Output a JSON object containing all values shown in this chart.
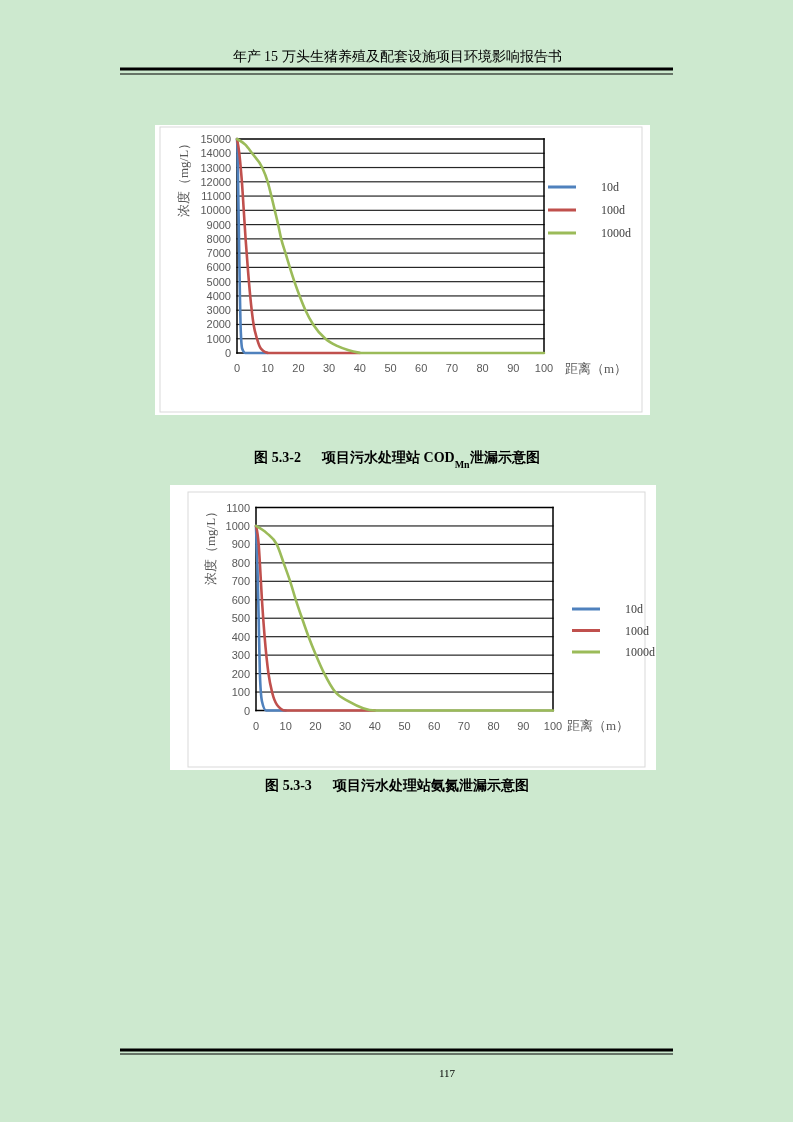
{
  "chart_data": [
    {
      "type": "line",
      "title": "图 5.3-2      项目污水处理站 COD$_{Mn}$泄漏示意图",
      "xlabel": "距离（m）",
      "ylabel": "浓度（mg/L）",
      "xlim": [
        0,
        100
      ],
      "ylim": [
        0,
        15000
      ],
      "xticks": [
        0,
        10,
        20,
        30,
        40,
        50,
        60,
        70,
        80,
        90,
        100
      ],
      "yticks": [
        0,
        1000,
        2000,
        3000,
        4000,
        5000,
        6000,
        7000,
        8000,
        9000,
        10000,
        11000,
        12000,
        13000,
        14000,
        15000
      ],
      "grid": "y",
      "legend": "right",
      "annotations": [
        "年产 15 万头生猪养殖及配套设施项目环境影响报告书"
      ],
      "series": [
        {
          "name": "10d",
          "color": "#4f81bd",
          "x": [
            0,
            0.2,
            0.35,
            0.5,
            0.65,
            0.8,
            0.95,
            1.15,
            1.35,
            1.7,
            2.7,
            10
          ],
          "values": [
            15000,
            14000,
            12000,
            10000,
            8000,
            6000,
            4000,
            2000,
            1000,
            300,
            0,
            0
          ]
        },
        {
          "name": "100d",
          "color": "#c0504d",
          "x": [
            0,
            0.75,
            1.2,
            1.6,
            2.2,
            2.8,
            3.5,
            4.3,
            5.4,
            6.5,
            7.8,
            10.3,
            40
          ],
          "values": [
            15000,
            14000,
            13000,
            12000,
            10000,
            8000,
            6000,
            4000,
            2000,
            1000,
            300,
            0,
            0
          ]
        },
        {
          "name": "1000d",
          "color": "#9bbb59",
          "x": [
            0,
            2.7,
            4.9,
            8.2,
            10.0,
            11.2,
            12.3,
            13.4,
            14.4,
            15.8,
            17.2,
            18.7,
            20.4,
            22.3,
            24.8,
            28.8,
            32.6,
            36.4,
            41.3,
            100
          ],
          "values": [
            15000,
            14600,
            14000,
            13000,
            12000,
            11000,
            10000,
            9000,
            8000,
            7000,
            6000,
            5000,
            4000,
            3000,
            2000,
            1000,
            500,
            200,
            0,
            0
          ]
        }
      ]
    },
    {
      "type": "line",
      "title": "图 5.3-3      项目污水处理站氨氮泄漏示意图",
      "xlabel": "距离（m）",
      "ylabel": "浓度（mg/L）",
      "xlim": [
        0,
        100
      ],
      "ylim": [
        0,
        1100
      ],
      "xticks": [
        0,
        10,
        20,
        30,
        40,
        50,
        60,
        70,
        80,
        90,
        100
      ],
      "yticks": [
        0,
        100,
        200,
        300,
        400,
        500,
        600,
        700,
        800,
        900,
        1000,
        1100
      ],
      "grid": "y",
      "legend": "right",
      "annotations": [
        "117"
      ],
      "series": [
        {
          "name": "10d",
          "color": "#4f81bd",
          "x": [
            0,
            0.2,
            0.45,
            0.9,
            1.3,
            2.0,
            3.4,
            10
          ],
          "values": [
            1000,
            900,
            800,
            500,
            200,
            50,
            0,
            0
          ]
        },
        {
          "name": "100d",
          "color": "#c0504d",
          "x": [
            0,
            0.9,
            1.3,
            2.0,
            2.9,
            4.2,
            5.4,
            7.1,
            9.9,
            40
          ],
          "values": [
            1000,
            900,
            800,
            600,
            400,
            200,
            100,
            30,
            0,
            0
          ]
        },
        {
          "name": "1000d",
          "color": "#9bbb59",
          "x": [
            0,
            3.7,
            7.0,
            9.3,
            11.5,
            13.4,
            15.5,
            17.7,
            20.2,
            23.0,
            26.7,
            31.2,
            40.1,
            100
          ],
          "values": [
            1000,
            960,
            900,
            800,
            700,
            600,
            500,
            400,
            300,
            200,
            100,
            50,
            0,
            0
          ]
        }
      ]
    }
  ]
}
